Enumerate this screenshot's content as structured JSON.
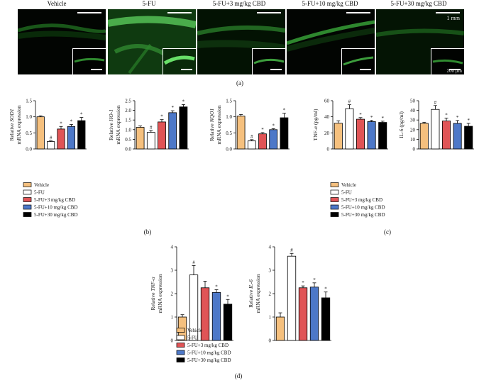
{
  "panel_a": {
    "labels": [
      "Vehicle",
      "5-FU",
      "5-FU+3 mg/kg CBD",
      "5-FU+10 mg/kg CBD",
      "5-FU+30 mg/kg CBD"
    ],
    "scale_main": "1 mm",
    "scale_inset": "200 μm",
    "panel_label": "(a)"
  },
  "panel_labels": {
    "b": "(b)",
    "c": "(c)",
    "d": "(d)"
  },
  "legend": {
    "entries": [
      "Vehicle",
      "5-FU",
      "5-FU+3 mg/kg CBD",
      "5-FU+10 mg/kg CBD",
      "5-FU+30 mg/kg CBD"
    ]
  },
  "colors": {
    "vehicle": "#f5c07e",
    "fu": "#ffffff",
    "cbd3": "#e05456",
    "cbd10": "#4d78c8",
    "cbd30": "#000000"
  },
  "chart_data": [
    {
      "type": "bar",
      "panel": "b",
      "ylabel_prefix": "Relative ",
      "ylabel_gene": "SOD1",
      "ylabel_line2": "mRNA expression",
      "ylim": [
        0,
        1.5
      ],
      "ticks": [
        "0.0",
        "0.5",
        "1.0",
        "1.5"
      ],
      "values": [
        1.0,
        0.23,
        0.62,
        0.7,
        0.88
      ],
      "errors": [
        0.03,
        0.02,
        0.08,
        0.06,
        0.1
      ],
      "marks": [
        "",
        "#",
        "*",
        "*",
        "*"
      ]
    },
    {
      "type": "bar",
      "panel": "b",
      "ylabel_prefix": "Relative ",
      "ylabel_gene": "HO-1",
      "ylabel_line2": "mRNA expression",
      "ylim": [
        0,
        2.5
      ],
      "ticks": [
        "0.0",
        "0.5",
        "1.0",
        "1.5",
        "2.0",
        "2.5"
      ],
      "values": [
        1.12,
        0.86,
        1.4,
        1.88,
        2.18
      ],
      "errors": [
        0.07,
        0.1,
        0.12,
        0.1,
        0.12
      ],
      "marks": [
        "",
        "#",
        "*",
        "*",
        "*"
      ]
    },
    {
      "type": "bar",
      "panel": "b",
      "ylabel_prefix": "Relative ",
      "ylabel_gene": "NQO1",
      "ylabel_line2": "mRNA expression",
      "ylim": [
        0,
        1.5
      ],
      "ticks": [
        "0.0",
        "0.5",
        "1.0",
        "1.5"
      ],
      "values": [
        1.02,
        0.25,
        0.47,
        0.6,
        0.97
      ],
      "errors": [
        0.05,
        0.04,
        0.04,
        0.03,
        0.14
      ],
      "marks": [
        "",
        "#",
        "*",
        "*",
        "*"
      ]
    },
    {
      "type": "bar",
      "panel": "c",
      "ylabel_prefix": "TNF-",
      "ylabel_gene": "α",
      "ylabel_suffix": " (pg/ml)",
      "ylabel_line2": "",
      "ylim": [
        0,
        60
      ],
      "ticks": [
        "0",
        "20",
        "40",
        "60"
      ],
      "values": [
        32,
        50,
        37,
        34,
        33
      ],
      "errors": [
        3,
        5,
        2,
        1.5,
        1.5
      ],
      "marks": [
        "",
        "#",
        "*",
        "*",
        "*"
      ]
    },
    {
      "type": "bar",
      "panel": "c",
      "ylabel_prefix": "IL-6 (pg/ml)",
      "ylabel_gene": "",
      "ylabel_line2": "",
      "ylim": [
        0,
        50
      ],
      "ticks": [
        "0",
        "10",
        "20",
        "30",
        "40",
        "50"
      ],
      "values": [
        26.5,
        41,
        29,
        26.5,
        23.5
      ],
      "errors": [
        1.2,
        4,
        3,
        3,
        3
      ],
      "marks": [
        "",
        "#",
        "*",
        "*",
        "*"
      ]
    },
    {
      "type": "bar",
      "panel": "d",
      "ylabel_prefix": "Relative ",
      "ylabel_gene": "TNF-α",
      "ylabel_line2": "mRNA expression",
      "ylim": [
        0,
        4
      ],
      "ticks": [
        "0",
        "1",
        "2",
        "3",
        "4"
      ],
      "values": [
        1.0,
        2.8,
        2.25,
        2.05,
        1.55
      ],
      "errors": [
        0.1,
        0.4,
        0.28,
        0.12,
        0.2
      ],
      "marks": [
        "",
        "#",
        "",
        "*",
        "*"
      ]
    },
    {
      "type": "bar",
      "panel": "d",
      "ylabel_prefix": "Relative ",
      "ylabel_gene": "IL-6",
      "ylabel_line2": "mRNA expression",
      "ylim": [
        0,
        4
      ],
      "ticks": [
        "0",
        "1",
        "2",
        "3",
        "4"
      ],
      "values": [
        1.0,
        3.6,
        2.25,
        2.28,
        1.82
      ],
      "errors": [
        0.18,
        0.12,
        0.08,
        0.18,
        0.25
      ],
      "marks": [
        "",
        "#",
        "*",
        "*",
        "*"
      ]
    }
  ]
}
